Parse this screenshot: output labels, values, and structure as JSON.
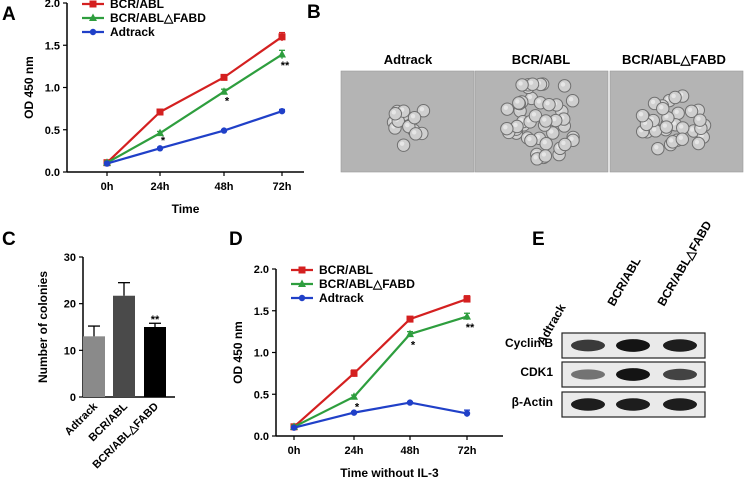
{
  "panel_labels": {
    "A": "A",
    "B": "B",
    "C": "C",
    "D": "D",
    "E": "E"
  },
  "chart_data": [
    {
      "id": "A",
      "type": "line",
      "xlabel": "Time",
      "ylabel": "OD  450 nm",
      "categories": [
        "0h",
        "24h",
        "48h",
        "72h"
      ],
      "ylim": [
        0,
        2.0
      ],
      "yticks": [
        "0.0",
        "0.5",
        "1.0",
        "1.5",
        "2.0"
      ],
      "legend_position": "top-left",
      "series": [
        {
          "name": "BCR/ABL",
          "color": "#d42020",
          "marker": "square",
          "values": [
            0.11,
            0.71,
            1.12,
            1.6
          ],
          "errors": [
            0.02,
            0.03,
            0.03,
            0.05
          ]
        },
        {
          "name": "BCR/ABL△FABD",
          "color": "#2e9e3e",
          "marker": "triangle",
          "values": [
            0.11,
            0.46,
            0.95,
            1.39
          ],
          "errors": [
            0.02,
            0.02,
            0.03,
            0.05
          ]
        },
        {
          "name": "Adtrack",
          "color": "#2040c8",
          "marker": "circle",
          "values": [
            0.1,
            0.28,
            0.49,
            0.72
          ],
          "errors": [
            0.01,
            0.01,
            0.01,
            0.02
          ]
        }
      ],
      "annotations": [
        {
          "category": "24h",
          "value": 0.4,
          "text": "*"
        },
        {
          "category": "48h",
          "value": 0.87,
          "text": "*"
        },
        {
          "category": "72h",
          "value": 1.29,
          "text": "**"
        }
      ]
    },
    {
      "id": "C",
      "type": "bar",
      "ylabel": "Number of colonies",
      "categories": [
        "Adtrack",
        "BCR/ABL",
        "BCR/ABL△FABD"
      ],
      "values": [
        13,
        21.7,
        15
      ],
      "errors": [
        2.2,
        2.8,
        0.8
      ],
      "colors": [
        "#8a8a8a",
        "#4a4a4a",
        "#000000"
      ],
      "ylim": [
        0,
        30
      ],
      "yticks": [
        "0",
        "10",
        "20",
        "30"
      ],
      "annotations": [
        {
          "category": "BCR/ABL△FABD",
          "value": 16.3,
          "text": "**"
        }
      ]
    },
    {
      "id": "D",
      "type": "line",
      "xlabel": "Time without IL-3",
      "ylabel": "OD  450 nm",
      "categories": [
        "0h",
        "24h",
        "48h",
        "72h"
      ],
      "ylim": [
        0,
        2.0
      ],
      "yticks": [
        "0.0",
        "0.5",
        "1.0",
        "1.5",
        "2.0"
      ],
      "legend_position": "top-left",
      "series": [
        {
          "name": "BCR/ABL",
          "color": "#d42020",
          "marker": "square",
          "values": [
            0.11,
            0.75,
            1.4,
            1.64
          ],
          "errors": [
            0.02,
            0.04,
            0.03,
            0.04
          ]
        },
        {
          "name": "BCR/ABL△FABD",
          "color": "#2e9e3e",
          "marker": "triangle",
          "values": [
            0.11,
            0.47,
            1.22,
            1.43
          ],
          "errors": [
            0.02,
            0.02,
            0.03,
            0.04
          ]
        },
        {
          "name": "Adtrack",
          "color": "#2040c8",
          "marker": "circle",
          "values": [
            0.1,
            0.28,
            0.4,
            0.27
          ],
          "errors": [
            0.01,
            0.01,
            0.01,
            0.04
          ]
        }
      ],
      "annotations": [
        {
          "category": "24h",
          "value": 0.38,
          "text": "*"
        },
        {
          "category": "48h",
          "value": 1.12,
          "text": "*"
        },
        {
          "category": "72h",
          "value": 1.33,
          "text": "**"
        }
      ]
    }
  ],
  "micrographs": {
    "titles": [
      "Adtrack",
      "BCR/ABL",
      "BCR/ABL△FABD"
    ]
  },
  "western_blot": {
    "lanes": [
      "Adtrack",
      "BCR/ABL",
      "BCR/ABL△FABD"
    ],
    "rows": [
      {
        "label": "Cyclin B",
        "intensity": [
          0.75,
          0.95,
          0.9
        ]
      },
      {
        "label": "CDK1",
        "intensity": [
          0.45,
          0.95,
          0.7
        ]
      },
      {
        "label": "β-Actin",
        "intensity": [
          0.9,
          0.9,
          0.9
        ]
      }
    ]
  }
}
